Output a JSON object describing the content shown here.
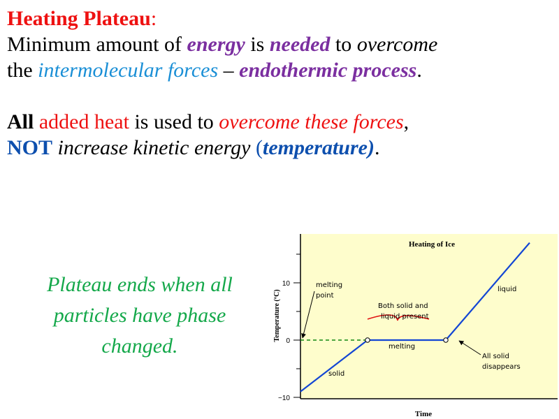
{
  "heading": {
    "title": "Heating Plateau",
    "colon": ":"
  },
  "line1": {
    "t1": "Minimum amount of ",
    "energy": "energy",
    "t2": " is ",
    "needed": "needed",
    "t3": " to ",
    "overcome": "overcome"
  },
  "line2": {
    "t1": "the ",
    "forces": "intermolecular forces",
    "t2": " – ",
    "process": "endothermic process",
    "t3": "."
  },
  "line3": {
    "all": "All",
    "added_heat": " added heat",
    "t1": " is used to ",
    "overcome": "overcome these forces",
    "t2": ","
  },
  "line4": {
    "not": "NOT",
    "t1": " increase kinetic energy ",
    "open": "(",
    "temperature": "temperature)",
    "t2": "."
  },
  "note": {
    "l1": "Plateau ends when all",
    "l2": "particles have phase",
    "l3": "changed."
  },
  "chart_data": {
    "type": "line",
    "title": "Heating of Ice",
    "xlabel": "Time",
    "ylabel": "Temperature (ºC)",
    "yticks": [
      "10",
      "0",
      "−10"
    ],
    "ylim": [
      -10,
      10
    ],
    "series": [
      {
        "values": [
          {
            "t": 0,
            "temp": -9
          },
          {
            "t": 2.4,
            "temp": 0
          },
          {
            "t": 5.2,
            "temp": 0
          },
          {
            "t": 8.2,
            "temp": 17
          }
        ]
      }
    ],
    "annotations": {
      "melting_point": [
        "melting",
        "point"
      ],
      "both": [
        "Both solid and",
        "liquid present"
      ],
      "melting": "melting",
      "liquid": "liquid",
      "solid": "solid",
      "all_solid": [
        "All solid",
        "disappears"
      ]
    },
    "colors": {
      "background": "#fefdcc",
      "line": "#1346d4",
      "dashed": "#118811",
      "brace": "#e01010"
    }
  }
}
